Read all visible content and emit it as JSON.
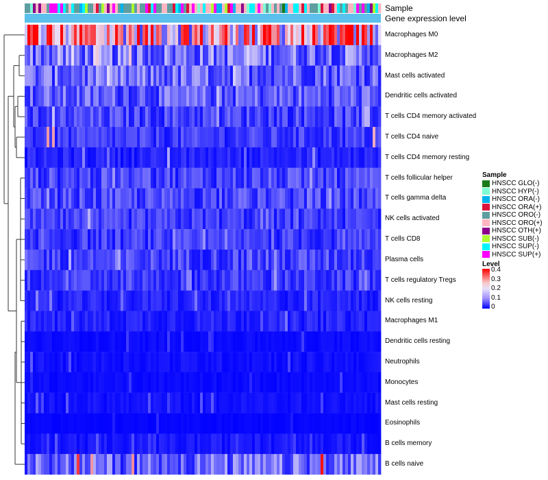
{
  "annotation_titles": {
    "sample": "Sample",
    "gene_expression": "Gene expression level"
  },
  "chart_data": {
    "type": "heatmap",
    "rows": [
      "Macrophages M0",
      "Macrophages M2",
      "Mast cells activated",
      "Dendritic cells activated",
      "T cells CD4 memory activated",
      "T cells CD4 naive",
      "T cells CD4 memory resting",
      "T cells follicular helper",
      "T cells gamma delta",
      "NK cells activated",
      "T cells CD8",
      "Plasma cells",
      "T cells regulatory  Tregs",
      "NK cells resting",
      "Macrophages M1",
      "Dendritic cells resting",
      "Neutrophils",
      "Monocytes",
      "Mast cells resting",
      "Eosinophils",
      "B cells memory",
      "B cells naive"
    ],
    "row_mean_level": [
      0.26,
      0.1,
      0.09,
      0.08,
      0.06,
      0.05,
      0.03,
      0.06,
      0.06,
      0.05,
      0.05,
      0.06,
      0.05,
      0.03,
      0.03,
      0.01,
      0.015,
      0.01,
      0.015,
      0.005,
      0.02,
      0.09
    ],
    "row_max_level": [
      0.4,
      0.25,
      0.2,
      0.2,
      0.18,
      0.4,
      0.15,
      0.16,
      0.16,
      0.16,
      0.14,
      0.16,
      0.15,
      0.12,
      0.12,
      0.06,
      0.1,
      0.06,
      0.09,
      0.04,
      0.08,
      0.4
    ],
    "column_count": 130,
    "color_scale": {
      "title": "Level",
      "ticks": [
        "0.4",
        "0.3",
        "0.2",
        "0.1",
        "0"
      ],
      "colors": {
        "low": "#0000ff",
        "mid": "#e8e0f8",
        "high": "#ff0000"
      },
      "range": [
        0,
        0.4
      ]
    },
    "sample_legend": {
      "title": "Sample",
      "items": [
        {
          "label": "HNSCC GLO(-)",
          "color": "#1a7a1a"
        },
        {
          "label": "HNSCC HYP(-)",
          "color": "#7fffd4"
        },
        {
          "label": "HNSCC ORA(-)",
          "color": "#00b2ee"
        },
        {
          "label": "HNSCC ORA(+)",
          "color": "#dc143c"
        },
        {
          "label": "HNSCC ORO(-)",
          "color": "#5f9ea0"
        },
        {
          "label": "HNSCC ORO(+)",
          "color": "#ffb6c1"
        },
        {
          "label": "HNSCC OTH(+)",
          "color": "#8b008b"
        },
        {
          "label": "HNSCC SUB(-)",
          "color": "#adff2f"
        },
        {
          "label": "HNSCC SUP(-)",
          "color": "#00f5ff"
        },
        {
          "label": "HNSCC SUP(+)",
          "color": "#ff00ff"
        }
      ]
    },
    "gene_expression_bar_color": "#5bc0eb"
  }
}
